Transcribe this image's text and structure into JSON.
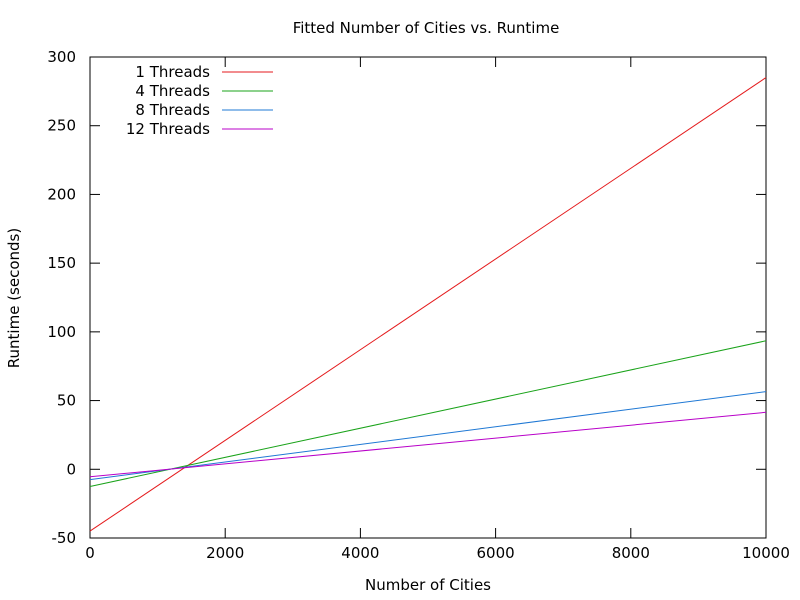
{
  "chart_data": {
    "type": "line",
    "title": "Fitted Number of Cities vs. Runtime",
    "xlabel": "Number of Cities",
    "ylabel": "Runtime (seconds)",
    "xlim": [
      0,
      10000
    ],
    "ylim": [
      -50,
      300
    ],
    "xticks": [
      0,
      2000,
      4000,
      6000,
      8000,
      10000
    ],
    "yticks": [
      -50,
      0,
      50,
      100,
      150,
      200,
      250,
      300
    ],
    "grid": false,
    "legend_position": "top-left",
    "series": [
      {
        "name": "1 Threads",
        "color": "#e41a1c",
        "x": [
          0,
          10000
        ],
        "y": [
          -45,
          285
        ]
      },
      {
        "name": "4 Threads",
        "color": "#1aa31a",
        "x": [
          0,
          10000
        ],
        "y": [
          -12.5,
          93.5
        ]
      },
      {
        "name": "8 Threads",
        "color": "#1f78d4",
        "x": [
          0,
          10000
        ],
        "y": [
          -7.5,
          56.5
        ]
      },
      {
        "name": "12 Threads",
        "color": "#b800c8",
        "x": [
          0,
          10000
        ],
        "y": [
          -5.5,
          41.5
        ]
      }
    ]
  }
}
